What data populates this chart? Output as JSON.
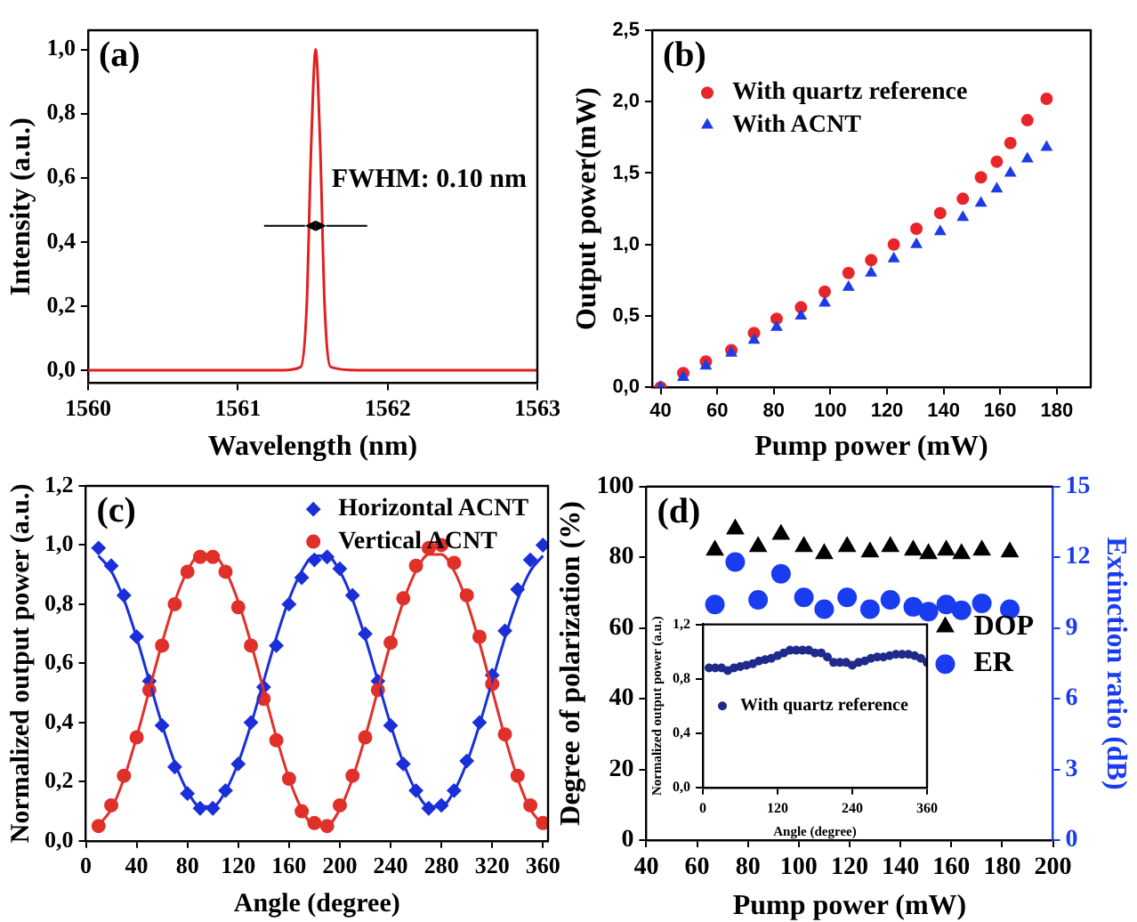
{
  "chart_data": [
    {
      "type": "line",
      "xlabel": "Wavelength (nm)",
      "ylabel": "Intensity (a.u.)",
      "annotations": [
        "(a)",
        {
          "text": "FWHM: 0.10 nm",
          "x": 1561.52,
          "y": 0.45
        }
      ],
      "x": [
        1560,
        1560.5,
        1561,
        1561.3,
        1561.42,
        1561.46,
        1561.49,
        1561.52,
        1561.55,
        1561.58,
        1561.62,
        1561.8,
        1562,
        1562.5,
        1563
      ],
      "values": [
        0.0,
        0.0,
        0.0,
        0.0,
        0.01,
        0.2,
        0.7,
        1.0,
        0.7,
        0.2,
        0.01,
        0.0,
        0.0,
        0.0,
        0.0
      ],
      "color": "#e02020",
      "line_style": "solid",
      "xlim": [
        1560,
        1563
      ],
      "ylim": [
        -0.04,
        1.06
      ],
      "xticks": [
        1560,
        1561,
        1562,
        1563
      ],
      "yticks": [
        {
          "value": 0,
          "label": "0,0"
        },
        {
          "value": 0.2,
          "label": "0,2"
        },
        {
          "value": 0.4,
          "label": "0,4"
        },
        {
          "value": 0.6,
          "label": "0,6"
        },
        {
          "value": 0.8,
          "label": "0,8"
        },
        {
          "value": 1,
          "label": "1,0"
        }
      ]
    },
    {
      "type": "scatter",
      "xlabel": "Pump power (mW)",
      "ylabel": "Output power(mW)",
      "annotations": [
        "(b)"
      ],
      "legend": "top left",
      "x": [
        40,
        48,
        56,
        65,
        73,
        81,
        89.6,
        98,
        106.4,
        114.4,
        122.4,
        130.4,
        138.8,
        146.8,
        153.2,
        158.8,
        163.6,
        169.6,
        176.4
      ],
      "series": [
        {
          "name": "With quartz reference",
          "color": "#e8262a",
          "marker": "circle",
          "values": [
            0.0,
            0.1,
            0.18,
            0.26,
            0.38,
            0.48,
            0.56,
            0.67,
            0.8,
            0.89,
            1.0,
            1.11,
            1.22,
            1.32,
            1.47,
            1.58,
            1.71,
            1.87,
            2.02
          ]
        },
        {
          "name": "With ACNT",
          "color": "#1e3ce6",
          "marker": "triangle",
          "values": [
            0.0,
            0.07,
            0.15,
            0.24,
            0.33,
            0.42,
            0.5,
            0.59,
            0.7,
            0.8,
            0.9,
            1.0,
            1.09,
            1.19,
            1.29,
            1.39,
            1.5,
            1.6,
            1.68
          ]
        }
      ],
      "xlim": [
        37,
        192
      ],
      "ylim": [
        0,
        2.5
      ],
      "xticks": [
        40,
        60,
        80,
        100,
        120,
        140,
        160,
        180
      ],
      "yticks": [
        {
          "value": 0,
          "label": "0,0"
        },
        {
          "value": 0.5,
          "label": "0,5"
        },
        {
          "value": 1,
          "label": "1,0"
        },
        {
          "value": 1.5,
          "label": "1,5"
        },
        {
          "value": 2,
          "label": "2,0"
        },
        {
          "value": 2.5,
          "label": "2,5"
        }
      ]
    },
    {
      "type": "scatter",
      "xlabel": "Angle (degree)",
      "ylabel": "Normalized output power (a.u.)",
      "annotations": [
        "(c)"
      ],
      "legend": "top right",
      "x": [
        10,
        20,
        30,
        40,
        50,
        60,
        70,
        80,
        90,
        100,
        110,
        120,
        130,
        140,
        150,
        160,
        170,
        180,
        190,
        200,
        210,
        220,
        230,
        240,
        250,
        260,
        270,
        280,
        290,
        300,
        310,
        320,
        330,
        340,
        350,
        360
      ],
      "series": [
        {
          "name": "Horizontal ACNT",
          "color": "#1a2fd8",
          "marker": "diamond",
          "values": [
            0.99,
            0.93,
            0.83,
            0.69,
            0.54,
            0.39,
            0.25,
            0.16,
            0.11,
            0.11,
            0.17,
            0.26,
            0.4,
            0.52,
            0.66,
            0.8,
            0.89,
            0.95,
            0.96,
            0.92,
            0.83,
            0.7,
            0.54,
            0.39,
            0.26,
            0.17,
            0.11,
            0.12,
            0.17,
            0.27,
            0.4,
            0.56,
            0.71,
            0.85,
            0.95,
            1.0
          ]
        },
        {
          "name": "Vertical ACNT",
          "color": "#e0302a",
          "marker": "circle",
          "values": [
            0.05,
            0.12,
            0.22,
            0.35,
            0.51,
            0.66,
            0.8,
            0.91,
            0.96,
            0.96,
            0.91,
            0.79,
            0.66,
            0.48,
            0.34,
            0.21,
            0.1,
            0.06,
            0.05,
            0.12,
            0.22,
            0.35,
            0.51,
            0.67,
            0.82,
            0.93,
            0.99,
            1.0,
            0.94,
            0.83,
            0.69,
            0.53,
            0.36,
            0.22,
            0.12,
            0.06
          ]
        },
        {
          "type": "line",
          "color": "#1a2fd8",
          "marker": "none",
          "x": [
            10,
            20,
            30,
            40,
            50,
            60,
            70,
            80,
            90,
            100,
            110,
            120,
            130,
            140,
            150,
            160,
            170,
            180,
            190,
            200,
            210,
            220,
            230,
            240,
            250,
            260,
            270,
            280,
            290,
            300,
            310,
            320,
            330,
            340,
            350,
            360
          ],
          "values": [
            0.964,
            0.912,
            0.816,
            0.687,
            0.54,
            0.393,
            0.264,
            0.168,
            0.116,
            0.116,
            0.168,
            0.264,
            0.393,
            0.54,
            0.687,
            0.816,
            0.912,
            0.964,
            0.964,
            0.912,
            0.816,
            0.687,
            0.54,
            0.393,
            0.264,
            0.168,
            0.116,
            0.116,
            0.168,
            0.264,
            0.393,
            0.54,
            0.687,
            0.816,
            0.912,
            0.964
          ]
        },
        {
          "type": "line",
          "color": "#e0302a",
          "marker": "none",
          "x": [
            10,
            20,
            30,
            40,
            50,
            60,
            70,
            80,
            90,
            100,
            110,
            120,
            130,
            140,
            150,
            160,
            170,
            180,
            190,
            200,
            210,
            220,
            230,
            240,
            250,
            260,
            270,
            280,
            290,
            300,
            310,
            320,
            330,
            340,
            350,
            360
          ],
          "values": [
            0.052,
            0.107,
            0.211,
            0.351,
            0.51,
            0.669,
            0.809,
            0.913,
            0.968,
            0.968,
            0.913,
            0.809,
            0.669,
            0.51,
            0.351,
            0.211,
            0.107,
            0.052,
            0.052,
            0.107,
            0.211,
            0.351,
            0.51,
            0.669,
            0.809,
            0.913,
            0.968,
            0.968,
            0.913,
            0.809,
            0.669,
            0.51,
            0.351,
            0.211,
            0.107,
            0.052
          ]
        }
      ],
      "xlim": [
        0,
        364
      ],
      "ylim": [
        0,
        1.2
      ],
      "xticks": [
        0,
        40,
        80,
        120,
        160,
        200,
        240,
        280,
        320,
        360
      ],
      "yticks": [
        {
          "value": 0,
          "label": "0,0"
        },
        {
          "value": 0.2,
          "label": "0,2"
        },
        {
          "value": 0.4,
          "label": "0,4"
        },
        {
          "value": 0.6,
          "label": "0,6"
        },
        {
          "value": 0.8,
          "label": "0,8"
        },
        {
          "value": 1,
          "label": "1,0"
        },
        {
          "value": 1.2,
          "label": "1,2"
        }
      ]
    },
    {
      "type": "scatter",
      "xlabel": "Pump power (mW)",
      "ylabel": "Degree of polarization (%)",
      "y2label": "Extinction ratio (dB)",
      "annotations": [
        "(d)"
      ],
      "legend": "right",
      "x": [
        67,
        75,
        84,
        93,
        102,
        110,
        119,
        128,
        136,
        145,
        151,
        158,
        164,
        172,
        183
      ],
      "series": [
        {
          "name": "DOP",
          "color": "#000000",
          "marker": "triangle",
          "values": [
            82,
            88,
            83,
            86.5,
            83,
            81,
            83,
            81.5,
            83,
            82,
            81,
            82,
            81,
            82,
            81.5
          ]
        },
        {
          "name": "ER",
          "color": "#1a3cf0",
          "marker": "circle",
          "axis": "y2",
          "values": [
            10.0,
            11.8,
            10.2,
            11.3,
            10.3,
            9.8,
            10.3,
            9.8,
            10.2,
            9.9,
            9.7,
            10.0,
            9.75,
            10.05,
            9.8
          ]
        }
      ],
      "xlim": [
        40,
        200
      ],
      "ylim": [
        0,
        100
      ],
      "y2lim": [
        0,
        15
      ],
      "xticks": [
        40,
        60,
        80,
        100,
        120,
        140,
        160,
        180,
        200
      ],
      "yticks": [
        0,
        20,
        40,
        60,
        80,
        100
      ],
      "y2ticks": [
        0,
        3,
        6,
        9,
        12,
        15
      ]
    },
    {
      "type": "scatter",
      "xlabel": "Angle (degree)",
      "ylabel": "Normalized output power (a.u.)",
      "legend": "left",
      "x": [
        10,
        20,
        30,
        40,
        50,
        60,
        70,
        80,
        90,
        100,
        110,
        120,
        130,
        140,
        150,
        160,
        170,
        180,
        190,
        200,
        210,
        220,
        230,
        240,
        250,
        260,
        270,
        280,
        290,
        300,
        310,
        320,
        330,
        340,
        350,
        360
      ],
      "series": [
        {
          "name": "With quartz reference",
          "color": "#1f2a8a",
          "marker": "circle",
          "values": [
            0.88,
            0.88,
            0.88,
            0.86,
            0.88,
            0.89,
            0.9,
            0.91,
            0.93,
            0.94,
            0.95,
            0.97,
            0.99,
            1.01,
            1.01,
            1.01,
            1.01,
            0.99,
            0.99,
            0.96,
            0.92,
            0.92,
            0.92,
            0.9,
            0.92,
            0.93,
            0.95,
            0.96,
            0.96,
            0.97,
            0.98,
            0.98,
            0.98,
            0.97,
            0.95,
            0.92
          ]
        }
      ],
      "xlim": [
        0,
        360
      ],
      "ylim": [
        0,
        1.2
      ],
      "xticks": [
        0,
        120,
        240,
        360
      ],
      "yticks": [
        {
          "value": 0,
          "label": "0,0"
        },
        {
          "value": 0.4,
          "label": "0,4"
        },
        {
          "value": 0.8,
          "label": "0,8"
        },
        {
          "value": 1.2,
          "label": "1,2"
        }
      ]
    }
  ]
}
